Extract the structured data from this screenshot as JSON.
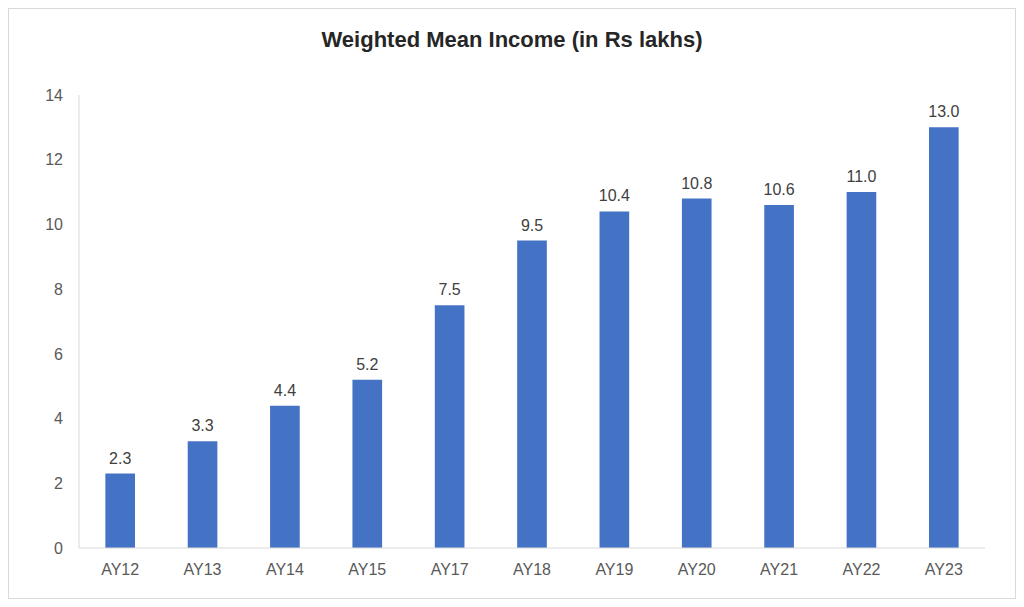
{
  "chart_data": {
    "type": "bar",
    "title": "Weighted Mean Income (in Rs lakhs)",
    "categories": [
      "AY12",
      "AY13",
      "AY14",
      "AY15",
      "AY17",
      "AY18",
      "AY19",
      "AY20",
      "AY21",
      "AY22",
      "AY23"
    ],
    "values": [
      2.3,
      3.3,
      4.4,
      5.2,
      7.5,
      9.5,
      10.4,
      10.8,
      10.6,
      11.0,
      13.0
    ],
    "value_labels": [
      "2.3",
      "3.3",
      "4.4",
      "5.2",
      "7.5",
      "9.5",
      "10.4",
      "10.8",
      "10.6",
      "11.0",
      "13.0"
    ],
    "color": "#4472c4",
    "ylim": [
      0,
      14
    ],
    "yticks": [
      0,
      2,
      4,
      6,
      8,
      10,
      12,
      14
    ],
    "grid": false,
    "data_labels": true
  }
}
